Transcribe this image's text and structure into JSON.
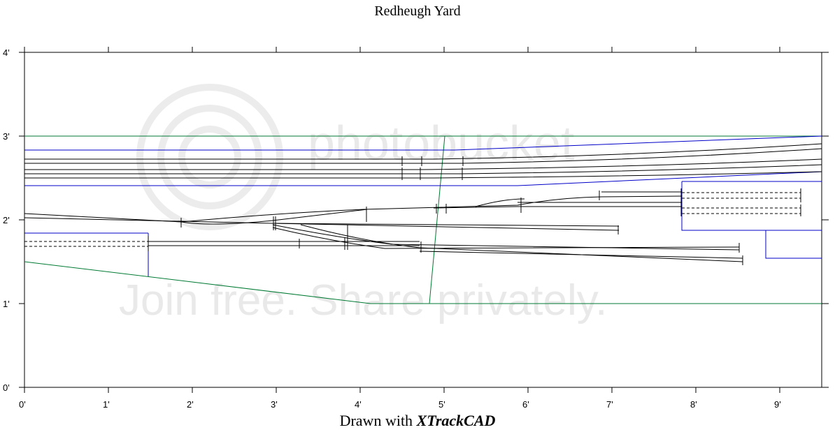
{
  "title": "Redheugh Yard",
  "footer": {
    "prefix": "Drawn with ",
    "brand": "XTrackCAD"
  },
  "axes": {
    "x_ticks": [
      "0'",
      "1'",
      "2'",
      "3'",
      "4'",
      "5'",
      "6'",
      "7'",
      "8'",
      "9'"
    ],
    "y_ticks": [
      "0'",
      "1'",
      "2'",
      "3'",
      "4'"
    ]
  },
  "colors": {
    "track": "#000000",
    "benchwork": "#0000c8",
    "room": "#007a33",
    "frame": "#000000"
  },
  "watermark": {
    "brand": "photobucket",
    "slogan": "Join free. Share privately."
  }
}
